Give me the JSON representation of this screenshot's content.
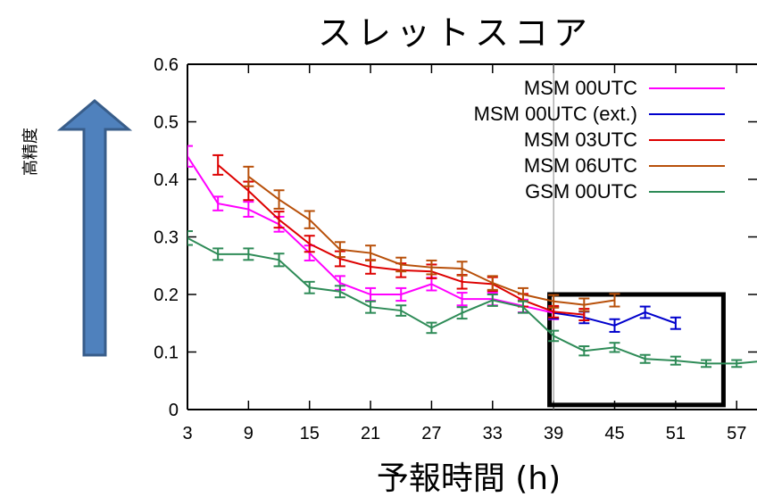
{
  "chart_data": {
    "type": "line",
    "title": "スレットスコア",
    "xlabel": "予報時間 (h)",
    "ylabel": "",
    "side_label": "高精度",
    "xlim": [
      3,
      59
    ],
    "ylim": [
      0,
      0.6
    ],
    "x_ticks": [
      3,
      9,
      15,
      21,
      27,
      33,
      39,
      45,
      51,
      57
    ],
    "y_ticks": [
      0,
      0.1,
      0.2,
      0.3,
      0.4,
      0.5,
      0.6
    ],
    "y_tick_labels": [
      "0",
      "0.1",
      "0.2",
      "0.3",
      "0.4",
      "0.5",
      "0.6"
    ],
    "reference_line_x": 39,
    "highlight_box": {
      "x": [
        38.6,
        55.7
      ],
      "y": [
        0.008,
        0.2
      ]
    },
    "arrow_direction": "up",
    "series": [
      {
        "name": "MSM 00UTC",
        "color": "#ff00ff",
        "x": [
          3,
          6,
          9,
          12,
          15,
          18,
          21,
          24,
          27,
          30,
          33,
          36,
          39
        ],
        "y": [
          0.44,
          0.358,
          0.348,
          0.322,
          0.272,
          0.22,
          0.2,
          0.2,
          0.218,
          0.192,
          0.192,
          0.18,
          0.168
        ],
        "err": [
          0.018,
          0.012,
          0.013,
          0.013,
          0.013,
          0.012,
          0.011,
          0.011,
          0.011,
          0.011,
          0.011,
          0.011,
          0.011
        ]
      },
      {
        "name": "MSM 00UTC (ext.)",
        "color": "#0000cc",
        "x": [
          39,
          42,
          45,
          48,
          51
        ],
        "y": [
          0.168,
          0.16,
          0.146,
          0.169,
          0.15
        ],
        "err": [
          0.01,
          0.01,
          0.011,
          0.01,
          0.01
        ]
      },
      {
        "name": "MSM 03UTC",
        "color": "#dd0000",
        "x": [
          6,
          9,
          12,
          15,
          18,
          21,
          24,
          27,
          30,
          33,
          36,
          39,
          42
        ],
        "y": [
          0.425,
          0.38,
          0.33,
          0.288,
          0.262,
          0.248,
          0.242,
          0.24,
          0.222,
          0.218,
          0.19,
          0.17,
          0.165
        ],
        "err": [
          0.017,
          0.016,
          0.014,
          0.014,
          0.013,
          0.012,
          0.012,
          0.012,
          0.012,
          0.012,
          0.011,
          0.01,
          0.01
        ]
      },
      {
        "name": "MSM 06UTC",
        "color": "#b8500a",
        "x": [
          9,
          12,
          15,
          18,
          21,
          24,
          27,
          30,
          33,
          36,
          39,
          42,
          45
        ],
        "y": [
          0.405,
          0.365,
          0.33,
          0.278,
          0.272,
          0.252,
          0.247,
          0.245,
          0.22,
          0.2,
          0.188,
          0.182,
          0.19
        ],
        "err": [
          0.017,
          0.016,
          0.015,
          0.013,
          0.013,
          0.012,
          0.012,
          0.012,
          0.012,
          0.011,
          0.011,
          0.011,
          0.011
        ]
      },
      {
        "name": "GSM 00UTC",
        "color": "#2e8b57",
        "x": [
          3,
          6,
          9,
          12,
          15,
          18,
          21,
          24,
          27,
          30,
          33,
          36,
          39,
          42,
          45,
          48,
          51,
          54,
          57,
          60
        ],
        "y": [
          0.298,
          0.27,
          0.27,
          0.26,
          0.212,
          0.205,
          0.178,
          0.172,
          0.142,
          0.168,
          0.19,
          0.178,
          0.128,
          0.102,
          0.108,
          0.088,
          0.085,
          0.08,
          0.08,
          0.085
        ],
        "err": [
          0.012,
          0.01,
          0.01,
          0.011,
          0.01,
          0.01,
          0.01,
          0.009,
          0.009,
          0.01,
          0.01,
          0.01,
          0.009,
          0.008,
          0.008,
          0.007,
          0.007,
          0.006,
          0.006,
          0.006
        ]
      }
    ]
  }
}
